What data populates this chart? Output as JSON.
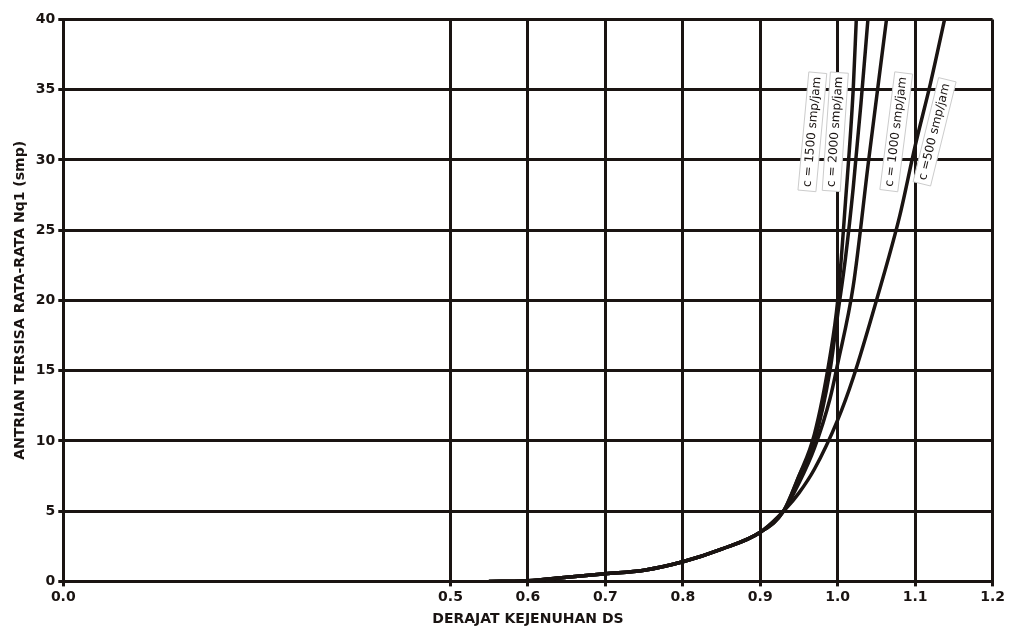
{
  "chart_data": {
    "type": "line",
    "xlabel": "DERAJAT KEJENUHAN DS",
    "ylabel": "ANTRIAN TERSISA RATA-RATA Nq1 (smp)",
    "xlim": [
      0.0,
      1.2
    ],
    "xticks": [
      {
        "value": 0.0,
        "label": "0.0"
      },
      0.5,
      0.6,
      0.7,
      0.8,
      0.9,
      {
        "value": 1.0,
        "label": "1.0"
      },
      1.1,
      1.2
    ],
    "ylim": [
      0,
      40
    ],
    "yticks": [
      0,
      5,
      10,
      15,
      20,
      25,
      30,
      35,
      40
    ],
    "grid": true,
    "legend": false,
    "marker": "none",
    "line_style": "solid",
    "series": [
      {
        "name": "c = 2000 smp/jam",
        "color": "#1a1412",
        "x": [
          0.55,
          0.6,
          0.65,
          0.7,
          0.75,
          0.8,
          0.85,
          0.9,
          0.93,
          0.95,
          0.97,
          0.99,
          1.0,
          1.01,
          1.02,
          1.024
        ],
        "values": [
          0,
          0.05,
          0.3,
          0.55,
          0.8,
          1.4,
          2.3,
          3.5,
          5,
          7.5,
          10.5,
          16,
          20,
          27,
          35,
          40
        ]
      },
      {
        "name": "c = 1500 smp/jam",
        "color": "#1a1412",
        "x": [
          0.55,
          0.6,
          0.65,
          0.7,
          0.75,
          0.8,
          0.85,
          0.9,
          0.93,
          0.95,
          0.97,
          0.99,
          1.0,
          1.01,
          1.02,
          1.03,
          1.039
        ],
        "values": [
          0,
          0.05,
          0.3,
          0.55,
          0.8,
          1.4,
          2.3,
          3.5,
          5,
          7.5,
          10,
          15,
          19,
          23,
          28,
          34,
          40
        ]
      },
      {
        "name": "c = 1000 smp/jam",
        "color": "#1a1412",
        "x": [
          0.55,
          0.6,
          0.65,
          0.7,
          0.75,
          0.8,
          0.85,
          0.9,
          0.93,
          0.95,
          0.97,
          0.99,
          1.0,
          1.02,
          1.04,
          1.063
        ],
        "values": [
          0,
          0.05,
          0.3,
          0.55,
          0.8,
          1.4,
          2.3,
          3.5,
          5,
          7,
          9.5,
          13,
          15.5,
          21,
          30,
          40
        ]
      },
      {
        "name": "c =500 smp/jam",
        "color": "#1a1412",
        "x": [
          0.55,
          0.6,
          0.65,
          0.7,
          0.75,
          0.8,
          0.85,
          0.9,
          0.93,
          0.95,
          0.97,
          1.0,
          1.02,
          1.05,
          1.08,
          1.1,
          1.12,
          1.138
        ],
        "values": [
          0,
          0.05,
          0.3,
          0.55,
          0.8,
          1.4,
          2.3,
          3.5,
          5,
          6.3,
          8,
          11.5,
          14.5,
          20,
          26,
          31,
          35.5,
          40
        ]
      }
    ]
  }
}
